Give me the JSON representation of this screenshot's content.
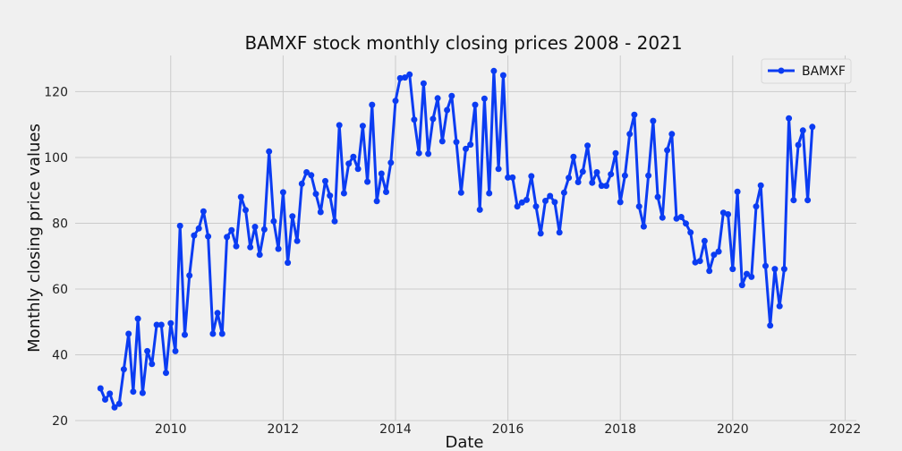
{
  "chart_data": {
    "type": "line",
    "title": "BAMXF stock monthly closing prices 2008 - 2021",
    "xlabel": "Date",
    "ylabel": "Monthly closing price values",
    "xlim": [
      2008.3,
      2022.2
    ],
    "ylim": [
      20,
      131
    ],
    "x_ticks": [
      2010,
      2012,
      2014,
      2016,
      2018,
      2020,
      2022
    ],
    "y_ticks": [
      20,
      40,
      60,
      80,
      100,
      120
    ],
    "grid": true,
    "legend": {
      "position": "top-right",
      "entries": [
        "BAMXF"
      ]
    },
    "series": [
      {
        "name": "BAMXF",
        "color": "#0b3cf2",
        "start": 2008.75,
        "step": 0.0833333,
        "values": [
          29.8,
          26.4,
          28.2,
          24.0,
          25.1,
          35.6,
          46.4,
          28.8,
          51.0,
          28.4,
          41.1,
          37.2,
          49.1,
          49.1,
          34.5,
          49.6,
          41.1,
          79.2,
          46.1,
          64.1,
          76.3,
          78.4,
          83.6,
          76.0,
          46.4,
          52.7,
          46.4,
          75.8,
          77.9,
          73.0,
          88.0,
          84.0,
          72.7,
          78.9,
          70.4,
          78.1,
          101.8,
          80.6,
          72.2,
          89.4,
          68.0,
          82.1,
          74.6,
          92.0,
          95.5,
          94.6,
          88.9,
          83.4,
          92.8,
          88.4,
          80.6,
          109.8,
          89.1,
          98.1,
          100.2,
          96.5,
          109.6,
          92.6,
          116.0,
          86.7,
          95.1,
          89.5,
          98.4,
          117.2,
          124.1,
          124.3,
          125.2,
          111.5,
          101.3,
          122.5,
          101.1,
          111.7,
          118.0,
          104.9,
          114.4,
          118.7,
          104.7,
          89.3,
          102.6,
          103.9,
          116.0,
          84.1,
          117.9,
          89.1,
          126.3,
          96.5,
          125.0,
          93.9,
          93.9,
          85.1,
          86.3,
          87.1,
          94.3,
          85.1,
          76.9,
          86.8,
          88.3,
          86.4,
          77.2,
          89.3,
          93.8,
          100.2,
          92.5,
          95.7,
          103.6,
          92.3,
          95.5,
          91.4,
          91.4,
          94.9,
          101.3,
          86.4,
          94.5,
          107.1,
          113.0,
          85.1,
          79.0,
          94.5,
          111.1,
          88.0,
          81.7,
          102.2,
          107.1,
          81.4,
          81.9,
          79.9,
          77.2,
          68.1,
          68.5,
          74.6,
          65.5,
          70.4,
          71.4,
          83.2,
          82.7,
          66.1,
          89.6,
          61.2,
          64.6,
          63.7,
          85.1,
          91.5,
          67.0,
          48.9,
          66.1,
          54.8,
          66.1,
          111.9,
          87.0,
          103.8,
          108.2,
          87.0,
          109.3
        ]
      }
    ]
  }
}
